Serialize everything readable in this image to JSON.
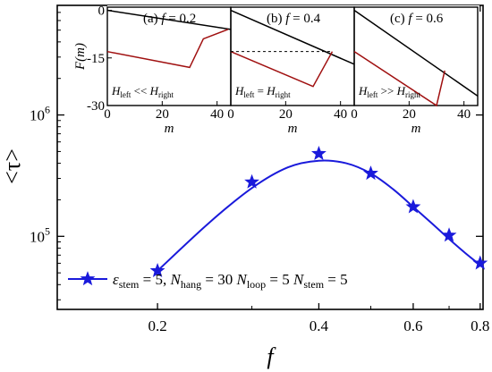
{
  "chart_data": [
    {
      "type": "line",
      "role": "main",
      "xlabel": "f",
      "ylabel": "<τ>",
      "xscale": "log",
      "yscale": "log",
      "xlim": [
        0.13,
        0.81
      ],
      "ylim": [
        25000,
        8000000
      ],
      "xticks": [
        0.2,
        0.4,
        0.6,
        0.8
      ],
      "xtick_labels": [
        "0.2",
        "0.4",
        "0.6",
        "0.8"
      ],
      "yticks": [
        100000,
        1000000
      ],
      "ytick_labels": [
        {
          "base": "10",
          "exp": "5"
        },
        {
          "base": "10",
          "exp": "6"
        }
      ],
      "series": [
        {
          "name": "ε_stem = 5,  N_hang = 30 N_loop = 5 N_stem = 5",
          "legend_parts": {
            "eps": "ε",
            "eps_sub": "stem",
            "eps_val": " = 5,  ",
            "nh": "N",
            "nh_sub": "hang",
            "nh_val": " = 30 ",
            "nl": "N",
            "nl_sub": "loop",
            "nl_val": " = 5 ",
            "ns": "N",
            "ns_sub": "stem",
            "ns_val": " = 5"
          },
          "marker": "star",
          "points": {
            "x": [
              0.2,
              0.3,
              0.4,
              0.5,
              0.6,
              0.7,
              0.8
            ],
            "y": [
              52000,
              280000,
              480000,
              330000,
              175000,
              102000,
              60000
            ]
          },
          "fit": {
            "x": [
              0.2,
              0.25,
              0.3,
              0.35,
              0.4,
              0.45,
              0.5,
              0.55,
              0.6,
              0.65,
              0.7,
              0.75,
              0.8
            ],
            "y": [
              52000,
              130000,
              250000,
              370000,
              420000,
              400000,
              330000,
              245000,
              175000,
              128000,
              95000,
              73000,
              58000
            ]
          }
        }
      ],
      "legend_position": "bottom-left",
      "colors": {
        "series": "#1a1adb",
        "axis": "#000000"
      }
    },
    {
      "type": "line",
      "role": "inset",
      "panel_label": "(a) ",
      "f_sym": "f",
      "f_val": " = 0.2",
      "annotation": {
        "h1": "H",
        "h1_sub": "left",
        "rel": " << ",
        "h2": "H",
        "h2_sub": "right"
      },
      "xlabel": "m",
      "ylabel": "F(m)",
      "xlim": [
        0,
        45
      ],
      "ylim": [
        -30,
        1
      ],
      "xticks": [
        0,
        20,
        40
      ],
      "yticks": [
        0,
        -15,
        -30
      ],
      "ytick_labels": [
        "0",
        "-15",
        "-30"
      ],
      "series": [
        {
          "name": "",
          "color": "#000000",
          "x": [
            0,
            45
          ],
          "y": [
            0,
            -6
          ]
        },
        {
          "name": "",
          "color": "#a01010",
          "x": [
            0,
            30,
            35,
            44
          ],
          "y": [
            -13,
            -18,
            -9,
            -6
          ]
        }
      ]
    },
    {
      "type": "line",
      "role": "inset",
      "panel_label": "(b) ",
      "f_sym": "f",
      "f_val": " = 0.4",
      "annotation": {
        "h1": "H",
        "h1_sub": "left",
        "rel": " = ",
        "h2": "H",
        "h2_sub": "right"
      },
      "xlabel": "m",
      "xlim": [
        0,
        45
      ],
      "ylim": [
        -30,
        1
      ],
      "xticks": [
        0,
        20,
        40
      ],
      "series": [
        {
          "name": "",
          "color": "#000000",
          "x": [
            0,
            45
          ],
          "y": [
            0,
            -17
          ]
        },
        {
          "name": "",
          "color": "#a01010",
          "x": [
            0,
            30,
            37
          ],
          "y": [
            -13,
            -24,
            -13
          ]
        },
        {
          "name": "",
          "color": "#000000",
          "dashed": true,
          "x": [
            0,
            37
          ],
          "y": [
            -13,
            -13
          ]
        }
      ]
    },
    {
      "type": "line",
      "role": "inset",
      "panel_label": "(c) ",
      "f_sym": "f",
      "f_val": " = 0.6",
      "annotation": {
        "h1": "H",
        "h1_sub": "left",
        "rel": " >> ",
        "h2": "H",
        "h2_sub": "right"
      },
      "xlabel": "m",
      "xlim": [
        0,
        45
      ],
      "ylim": [
        -30,
        1
      ],
      "xticks": [
        0,
        20,
        40
      ],
      "series": [
        {
          "name": "",
          "color": "#000000",
          "x": [
            0,
            45
          ],
          "y": [
            0,
            -27
          ]
        },
        {
          "name": "",
          "color": "#a01010",
          "x": [
            0,
            30,
            33
          ],
          "y": [
            -13,
            -30,
            -19
          ]
        }
      ]
    }
  ]
}
